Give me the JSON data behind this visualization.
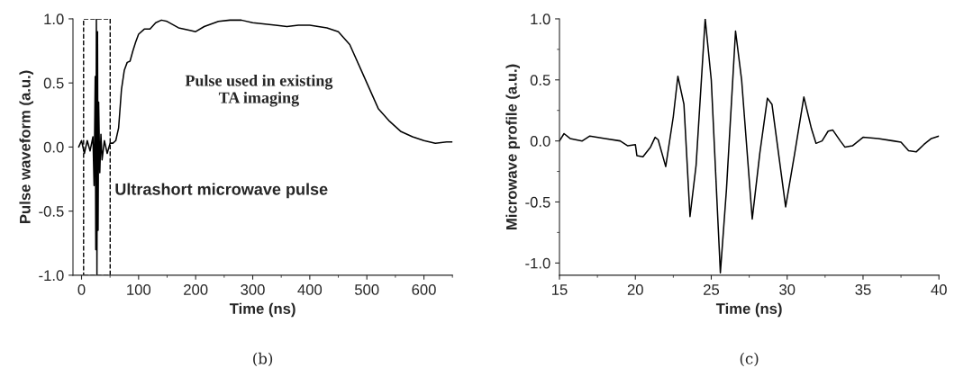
{
  "chart_data": [
    {
      "type": "line",
      "xlabel": "Time (ns)",
      "ylabel": "Pulse waveform (a.u.)",
      "series": [
        {
          "color": "#000000",
          "x": [
            -5,
            0,
            5,
            10,
            15,
            20,
            22,
            24,
            25,
            26,
            27,
            28,
            29,
            30,
            32,
            34,
            36,
            40,
            45,
            50,
            55,
            60,
            65,
            70,
            75,
            80,
            85,
            90,
            95,
            100,
            110,
            120,
            130,
            140,
            150,
            170,
            190,
            200,
            215,
            240,
            260,
            280,
            300,
            340,
            360,
            380,
            400,
            430,
            450,
            470,
            490,
            500,
            520,
            540,
            560,
            580,
            600,
            620,
            640,
            650
          ],
          "values": [
            0,
            0.05,
            -0.05,
            0.05,
            -0.03,
            0.08,
            -0.3,
            0.55,
            -0.8,
            1.0,
            -1.0,
            0.9,
            -0.65,
            0.35,
            -0.2,
            0.1,
            -0.1,
            0.05,
            -0.05,
            0.03,
            0.03,
            0.05,
            0.15,
            0.45,
            0.6,
            0.66,
            0.67,
            0.75,
            0.82,
            0.88,
            0.92,
            0.92,
            0.97,
            0.99,
            0.98,
            0.93,
            0.91,
            0.9,
            0.94,
            0.98,
            0.99,
            0.99,
            0.97,
            0.95,
            0.94,
            0.95,
            0.95,
            0.93,
            0.9,
            0.8,
            0.6,
            0.5,
            0.3,
            0.2,
            0.12,
            0.08,
            0.05,
            0.03,
            0.04,
            0.04
          ]
        }
      ],
      "xlim": [
        -15,
        650
      ],
      "xticks": [
        0,
        100,
        200,
        300,
        400,
        500,
        600
      ],
      "ylim": [
        -1.0,
        1.0
      ],
      "yticks": [
        {
          "value": -1.0,
          "label": "-1.0"
        },
        {
          "value": -0.5,
          "label": "-0.5"
        },
        {
          "value": 0.0,
          "label": "0.0"
        },
        {
          "value": 0.5,
          "label": "0.5"
        },
        {
          "value": 1.0,
          "label": "1.0"
        }
      ],
      "annotations": [
        "Pulse used in existing\nTA imaging",
        "Ultrashort microwave pulse",
        "(b)"
      ]
    },
    {
      "type": "line",
      "xlabel": "Time (ns)",
      "ylabel": "Microwave profile (a.u.)",
      "series": [
        {
          "color": "#000000",
          "x": [
            15,
            15.3,
            15.7,
            16.5,
            17,
            18,
            19,
            19.5,
            20,
            20.1,
            20.5,
            21,
            21.3,
            21.5,
            22,
            22.5,
            22.8,
            23.2,
            23.6,
            24,
            24.6,
            25,
            25.6,
            26,
            26.6,
            27,
            27.7,
            28.2,
            28.7,
            29,
            29.9,
            30.5,
            31.1,
            31.6,
            31.9,
            32.3,
            32.7,
            33,
            33.5,
            33.8,
            34.3,
            35,
            36,
            37,
            37.5,
            38,
            38.5,
            39,
            39.5,
            40
          ],
          "values": [
            0.0,
            0.06,
            0.02,
            0.0,
            0.04,
            0.02,
            0.0,
            -0.04,
            -0.03,
            -0.12,
            -0.13,
            -0.05,
            0.03,
            0.01,
            -0.21,
            0.2,
            0.53,
            0.3,
            -0.62,
            -0.2,
            1.0,
            0.5,
            -1.08,
            -0.4,
            0.9,
            0.5,
            -0.64,
            -0.1,
            0.35,
            0.3,
            -0.54,
            -0.1,
            0.36,
            0.1,
            -0.02,
            0.0,
            0.08,
            0.09,
            0.0,
            -0.05,
            -0.04,
            0.03,
            0.02,
            0.0,
            -0.01,
            -0.08,
            -0.09,
            -0.03,
            0.02,
            0.04
          ]
        }
      ],
      "xlim": [
        15,
        40
      ],
      "xticks": [
        15,
        20,
        25,
        30,
        35,
        40
      ],
      "ylim": [
        -1.1,
        1.0
      ],
      "yticks": [
        {
          "value": -1.0,
          "label": "-1.0"
        },
        {
          "value": -0.5,
          "label": "-0.5"
        },
        {
          "value": 0.0,
          "label": "0.0"
        },
        {
          "value": 0.5,
          "label": "0.5"
        },
        {
          "value": 1.0,
          "label": "1.0"
        }
      ],
      "annotations": [
        "(c)"
      ]
    }
  ]
}
